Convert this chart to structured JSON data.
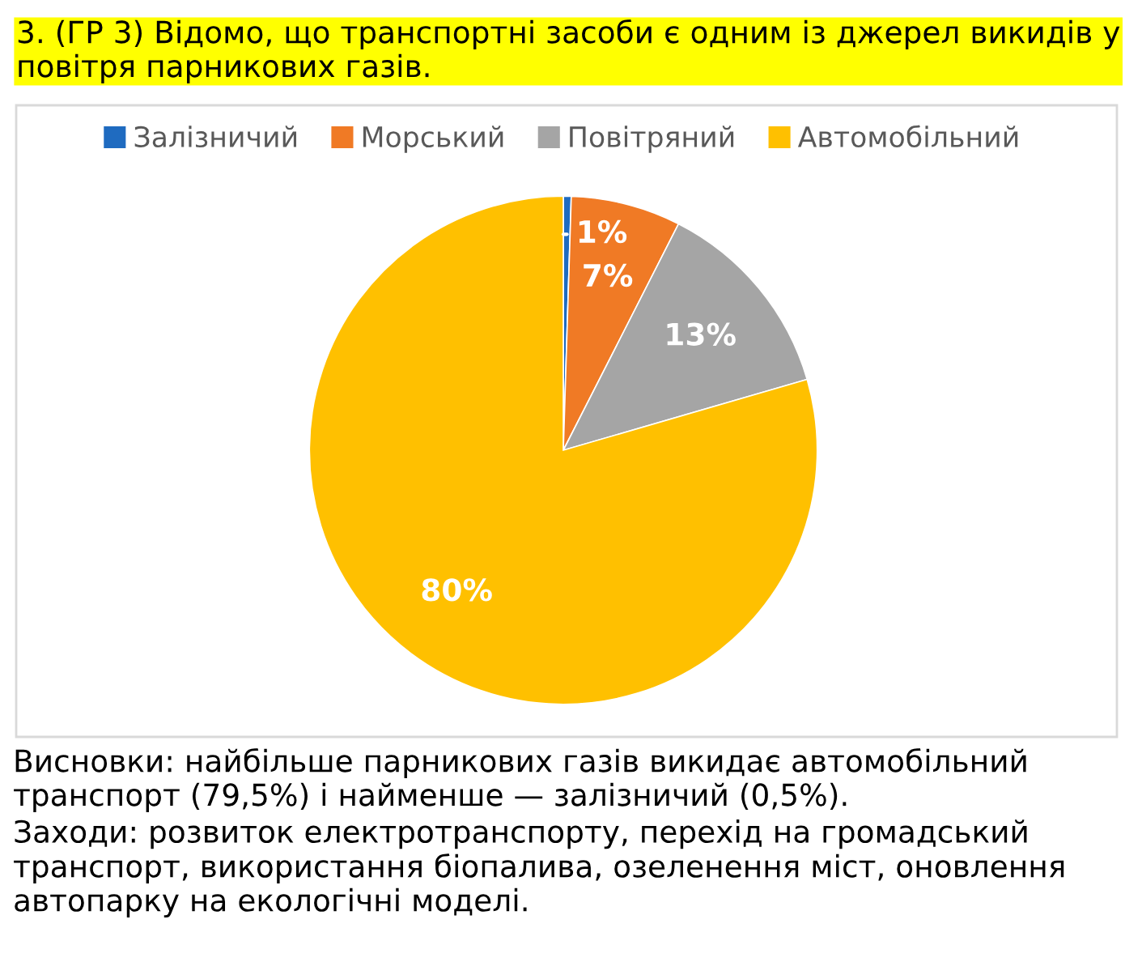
{
  "chart_data": {
    "type": "pie",
    "title": "3. (ГР 3) Відомо, що транспортні засоби є одним із джерел викидів у повітря парникових газів.",
    "categories": [
      "Залізничий",
      "Морський",
      "Повітряний",
      "Автомобільний"
    ],
    "values": [
      0.5,
      7,
      13,
      79.5
    ],
    "value_labels": [
      "1%",
      "7%",
      "13%",
      "80%"
    ],
    "colors": [
      "#1f6bc0",
      "#f07a25",
      "#a5a5a5",
      "#ffc000"
    ],
    "legend": "top",
    "annotations": [
      "Висновки: найбільше парникових газів викидає автомобільний транспорт (79,5%) і найменше — залізничий (0,5%).",
      "Заходи: розвиток електротранспорту, перехід на громадський транспорт, використання біопалива, озеленення міст, оновлення автопарку на екологічні моделі."
    ]
  }
}
